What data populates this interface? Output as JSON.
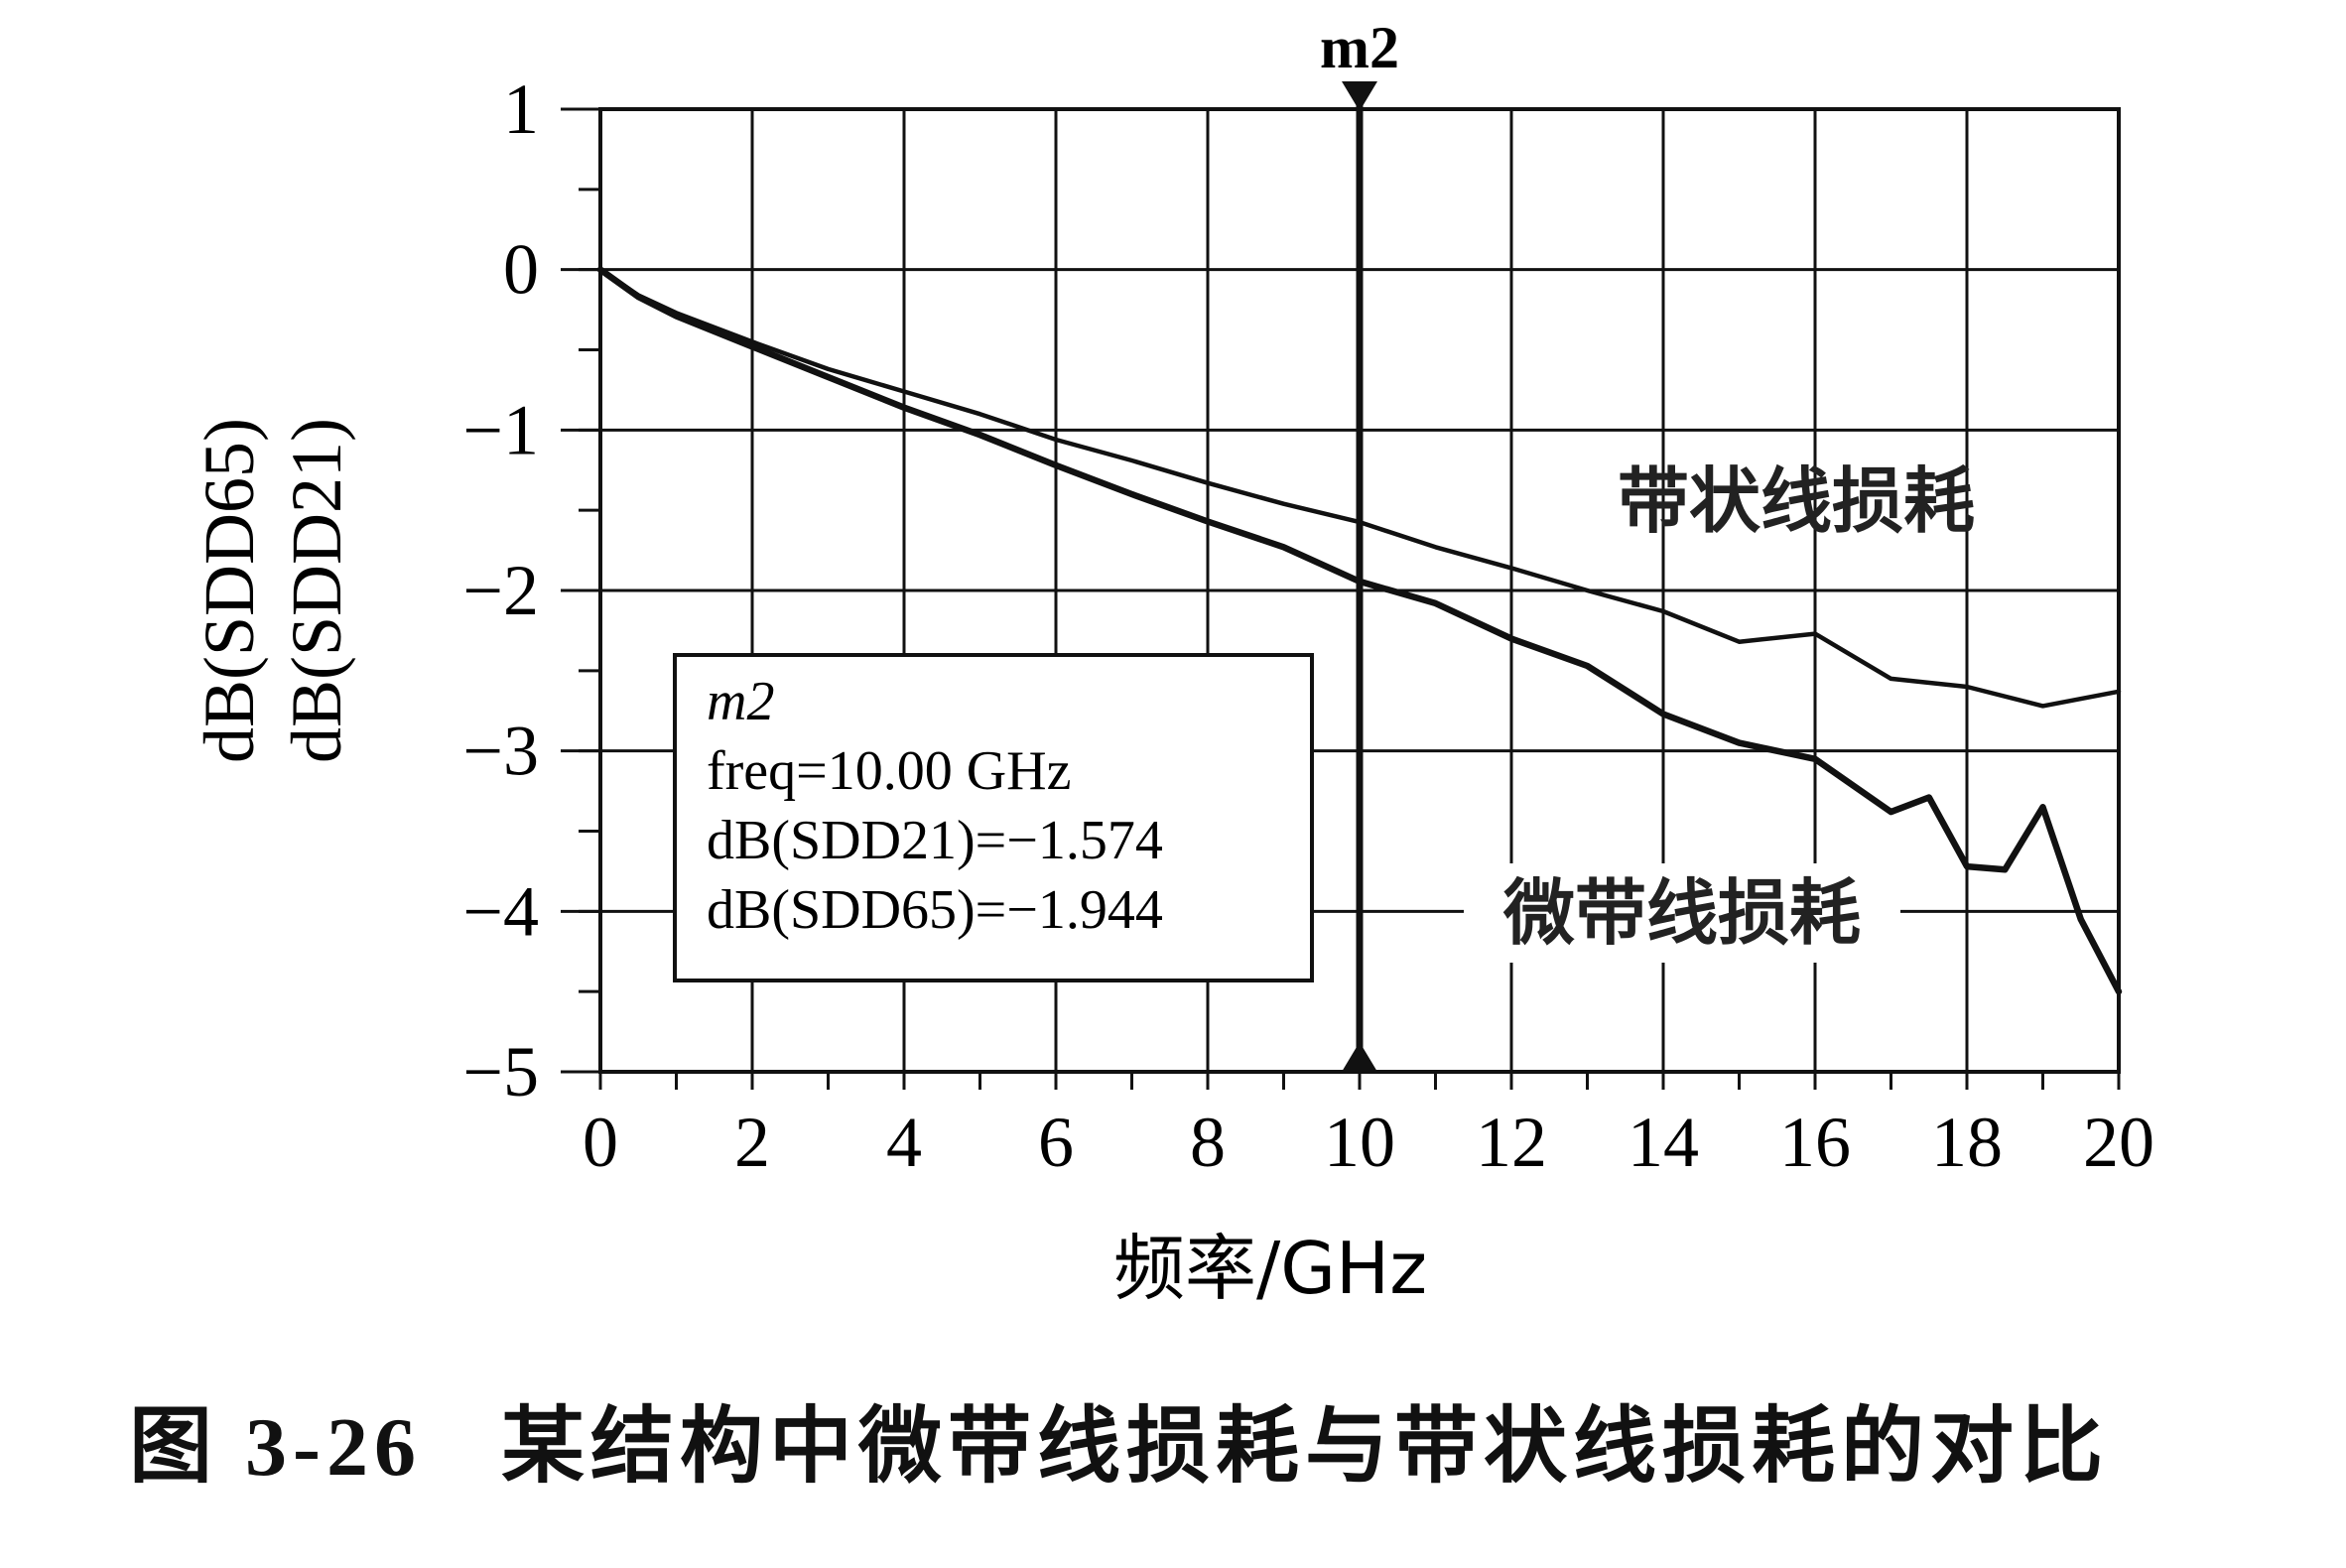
{
  "chart_data": {
    "type": "line",
    "xlabel": "频率/GHz",
    "ylabel_lines": [
      "dB(SDD65)",
      "dB(SDD21)"
    ],
    "xlim": [
      0,
      20
    ],
    "ylim": [
      -5,
      1
    ],
    "xticks": [
      0,
      2,
      4,
      6,
      8,
      10,
      12,
      14,
      16,
      18,
      20
    ],
    "yticks": [
      1,
      0,
      -1,
      -2,
      -3,
      -4,
      -5
    ],
    "ytick_labels": [
      "1",
      "0",
      "−1",
      "−2",
      "−3",
      "−4",
      "−5"
    ],
    "grid": true,
    "series": [
      {
        "name": "带状线损耗",
        "points": [
          [
            0,
            0
          ],
          [
            0.5,
            -0.16
          ],
          [
            1,
            -0.27
          ],
          [
            2,
            -0.45
          ],
          [
            3,
            -0.62
          ],
          [
            4,
            -0.76
          ],
          [
            5,
            -0.9
          ],
          [
            6,
            -1.06
          ],
          [
            7,
            -1.19
          ],
          [
            8,
            -1.33
          ],
          [
            9,
            -1.46
          ],
          [
            10,
            -1.574
          ],
          [
            11,
            -1.73
          ],
          [
            12,
            -1.86
          ],
          [
            13,
            -2.0
          ],
          [
            14,
            -2.13
          ],
          [
            15,
            -2.32
          ],
          [
            16,
            -2.27
          ],
          [
            17,
            -2.55
          ],
          [
            18,
            -2.6
          ],
          [
            19,
            -2.72
          ],
          [
            20,
            -2.63
          ]
        ]
      },
      {
        "name": "微带线损耗",
        "points": [
          [
            0,
            0
          ],
          [
            0.5,
            -0.17
          ],
          [
            1,
            -0.29
          ],
          [
            2,
            -0.48
          ],
          [
            3,
            -0.67
          ],
          [
            4,
            -0.86
          ],
          [
            5,
            -1.03
          ],
          [
            6,
            -1.22
          ],
          [
            7,
            -1.4
          ],
          [
            8,
            -1.57
          ],
          [
            9,
            -1.73
          ],
          [
            10,
            -1.944
          ],
          [
            11,
            -2.08
          ],
          [
            12,
            -2.3
          ],
          [
            13,
            -2.47
          ],
          [
            14,
            -2.77
          ],
          [
            15,
            -2.95
          ],
          [
            16,
            -3.05
          ],
          [
            17,
            -3.38
          ],
          [
            17.5,
            -3.29
          ],
          [
            18,
            -3.72
          ],
          [
            18.5,
            -3.74
          ],
          [
            19,
            -3.35
          ],
          [
            19.5,
            -4.05
          ],
          [
            20,
            -4.5
          ]
        ]
      }
    ],
    "annotations": {
      "marker_name": "m2",
      "marker_x": 10,
      "series_labels": [
        "带状线损耗",
        "微带线损耗"
      ],
      "box_lines": [
        "m2",
        "freq=10.00 GHz",
        "dB(SDD21)=−1.574",
        "dB(SDD65)=−1.944"
      ]
    }
  },
  "caption": {
    "number": "图 3-26",
    "text": "某结构中微带线损耗与带状线损耗的对比"
  }
}
